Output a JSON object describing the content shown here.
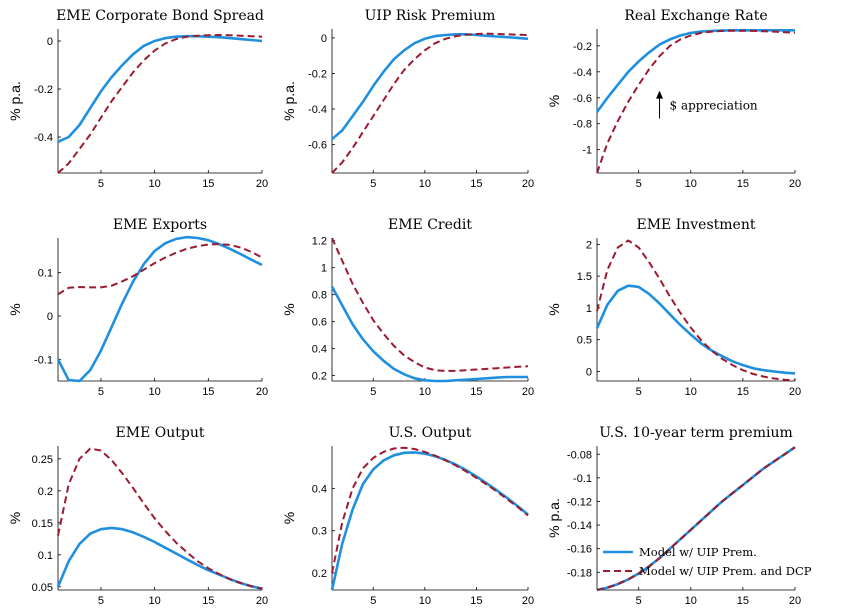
{
  "chart_data": [
    {
      "type": "line",
      "title": "EME Corporate Bond Spread",
      "ylabel": "% p.a.",
      "xlim": [
        1,
        20
      ],
      "ylim": [
        -0.55,
        0.05
      ],
      "xticks": [
        5,
        10,
        15,
        20
      ],
      "yticks": [
        -0.4,
        -0.2,
        0
      ],
      "ytick_labels": [
        "-0.4",
        "-0.2",
        "0"
      ],
      "x": [
        1,
        2,
        3,
        4,
        5,
        6,
        7,
        8,
        9,
        10,
        11,
        12,
        13,
        14,
        15,
        16,
        17,
        18,
        19,
        20
      ],
      "series": [
        {
          "name": "Model w/ UIP Prem.",
          "color": "#1f8fdf",
          "dash": "solid",
          "values": [
            -0.42,
            -0.4,
            -0.35,
            -0.28,
            -0.21,
            -0.15,
            -0.1,
            -0.055,
            -0.02,
            0.0,
            0.012,
            0.018,
            0.02,
            0.02,
            0.018,
            0.016,
            0.012,
            0.008,
            0.004,
            0.0
          ]
        },
        {
          "name": "Model w/ UIP Prem. and DCP",
          "color": "#9b1b30",
          "dash": "dashed",
          "values": [
            -0.55,
            -0.51,
            -0.45,
            -0.39,
            -0.32,
            -0.25,
            -0.19,
            -0.13,
            -0.08,
            -0.04,
            -0.01,
            0.008,
            0.018,
            0.022,
            0.024,
            0.025,
            0.024,
            0.022,
            0.02,
            0.018
          ]
        }
      ]
    },
    {
      "type": "line",
      "title": "UIP Risk Premium",
      "ylabel": "% p.a.",
      "xlim": [
        1,
        20
      ],
      "ylim": [
        -0.76,
        0.05
      ],
      "xticks": [
        5,
        10,
        15,
        20
      ],
      "yticks": [
        -0.6,
        -0.4,
        -0.2,
        0
      ],
      "ytick_labels": [
        "-0.6",
        "-0.4",
        "-0.2",
        "0"
      ],
      "x": [
        1,
        2,
        3,
        4,
        5,
        6,
        7,
        8,
        9,
        10,
        11,
        12,
        13,
        14,
        15,
        16,
        17,
        18,
        19,
        20
      ],
      "series": [
        {
          "name": "Model w/ UIP Prem.",
          "color": "#1f8fdf",
          "dash": "solid",
          "values": [
            -0.57,
            -0.52,
            -0.44,
            -0.36,
            -0.27,
            -0.19,
            -0.12,
            -0.07,
            -0.03,
            -0.005,
            0.01,
            0.016,
            0.02,
            0.02,
            0.016,
            0.012,
            0.008,
            0.004,
            0.0,
            -0.005
          ]
        },
        {
          "name": "Model w/ UIP Prem. and DCP",
          "color": "#9b1b30",
          "dash": "dashed",
          "values": [
            -0.76,
            -0.7,
            -0.62,
            -0.53,
            -0.44,
            -0.35,
            -0.26,
            -0.18,
            -0.12,
            -0.07,
            -0.03,
            -0.005,
            0.01,
            0.018,
            0.022,
            0.024,
            0.022,
            0.02,
            0.018,
            0.016
          ]
        }
      ]
    },
    {
      "type": "line",
      "title": "Real Exchange Rate",
      "ylabel": "%",
      "xlim": [
        1,
        20
      ],
      "ylim": [
        -1.18,
        -0.07
      ],
      "xticks": [
        5,
        10,
        15,
        20
      ],
      "yticks": [
        -1,
        -0.8,
        -0.6,
        -0.4,
        -0.2
      ],
      "ytick_labels": [
        "-1",
        "-0.8",
        "-0.6",
        "-0.4",
        "-0.2"
      ],
      "annotation": "$ appreciation",
      "x": [
        1,
        2,
        3,
        4,
        5,
        6,
        7,
        8,
        9,
        10,
        11,
        12,
        13,
        14,
        15,
        16,
        17,
        18,
        19,
        20
      ],
      "series": [
        {
          "name": "Model w/ UIP Prem.",
          "color": "#1f8fdf",
          "dash": "solid",
          "values": [
            -0.71,
            -0.6,
            -0.5,
            -0.4,
            -0.32,
            -0.25,
            -0.19,
            -0.15,
            -0.12,
            -0.1,
            -0.09,
            -0.085,
            -0.082,
            -0.08,
            -0.08,
            -0.08,
            -0.08,
            -0.08,
            -0.08,
            -0.08
          ]
        },
        {
          "name": "Model w/ UIP Prem. and DCP",
          "color": "#9b1b30",
          "dash": "dashed",
          "values": [
            -1.18,
            -0.95,
            -0.78,
            -0.63,
            -0.5,
            -0.38,
            -0.28,
            -0.2,
            -0.15,
            -0.12,
            -0.1,
            -0.09,
            -0.085,
            -0.083,
            -0.083,
            -0.085,
            -0.088,
            -0.09,
            -0.095,
            -0.1
          ]
        }
      ]
    },
    {
      "type": "line",
      "title": "EME Exports",
      "ylabel": "%",
      "xlim": [
        1,
        20
      ],
      "ylim": [
        -0.15,
        0.18
      ],
      "xticks": [
        5,
        10,
        15,
        20
      ],
      "yticks": [
        -0.1,
        0,
        0.1
      ],
      "ytick_labels": [
        "-0.1",
        "0",
        "0.1"
      ],
      "x": [
        1,
        2,
        3,
        4,
        5,
        6,
        7,
        8,
        9,
        10,
        11,
        12,
        13,
        14,
        15,
        16,
        17,
        18,
        19,
        20
      ],
      "series": [
        {
          "name": "Model w/ UIP Prem.",
          "color": "#1f8fdf",
          "dash": "solid",
          "values": [
            -0.1,
            -0.148,
            -0.15,
            -0.125,
            -0.08,
            -0.025,
            0.03,
            0.08,
            0.12,
            0.15,
            0.168,
            0.178,
            0.182,
            0.18,
            0.175,
            0.166,
            0.155,
            0.143,
            0.13,
            0.118
          ]
        },
        {
          "name": "Model w/ UIP Prem. and DCP",
          "color": "#9b1b30",
          "dash": "dashed",
          "values": [
            0.05,
            0.065,
            0.067,
            0.066,
            0.066,
            0.07,
            0.08,
            0.092,
            0.107,
            0.122,
            0.135,
            0.146,
            0.155,
            0.161,
            0.165,
            0.166,
            0.164,
            0.158,
            0.148,
            0.135
          ]
        }
      ]
    },
    {
      "type": "line",
      "title": "EME Credit",
      "ylabel": "%",
      "xlim": [
        1,
        20
      ],
      "ylim": [
        0.16,
        1.22
      ],
      "xticks": [
        5,
        10,
        15,
        20
      ],
      "yticks": [
        0.2,
        0.4,
        0.6,
        0.8,
        1,
        1.2
      ],
      "ytick_labels": [
        "0.2",
        "0.4",
        "0.6",
        "0.8",
        "1",
        "1.2"
      ],
      "x": [
        1,
        2,
        3,
        4,
        5,
        6,
        7,
        8,
        9,
        10,
        11,
        12,
        13,
        14,
        15,
        16,
        17,
        18,
        19,
        20
      ],
      "series": [
        {
          "name": "Model w/ UIP Prem.",
          "color": "#1f8fdf",
          "dash": "solid",
          "values": [
            0.86,
            0.72,
            0.58,
            0.47,
            0.38,
            0.31,
            0.25,
            0.21,
            0.18,
            0.165,
            0.16,
            0.16,
            0.165,
            0.17,
            0.175,
            0.18,
            0.185,
            0.19,
            0.19,
            0.19
          ]
        },
        {
          "name": "Model w/ UIP Prem. and DCP",
          "color": "#9b1b30",
          "dash": "dashed",
          "values": [
            1.22,
            1.05,
            0.88,
            0.74,
            0.61,
            0.51,
            0.42,
            0.35,
            0.3,
            0.26,
            0.24,
            0.235,
            0.235,
            0.24,
            0.245,
            0.25,
            0.255,
            0.26,
            0.265,
            0.27
          ]
        }
      ]
    },
    {
      "type": "line",
      "title": "EME Investment",
      "ylabel": "%",
      "xlim": [
        1,
        20
      ],
      "ylim": [
        -0.15,
        2.1
      ],
      "xticks": [
        5,
        10,
        15,
        20
      ],
      "yticks": [
        0,
        0.5,
        1,
        1.5,
        2
      ],
      "ytick_labels": [
        "0",
        "0.5",
        "1",
        "1.5",
        "2"
      ],
      "x": [
        1,
        2,
        3,
        4,
        5,
        6,
        7,
        8,
        9,
        10,
        11,
        12,
        13,
        14,
        15,
        16,
        17,
        18,
        19,
        20
      ],
      "series": [
        {
          "name": "Model w/ UIP Prem.",
          "color": "#1f8fdf",
          "dash": "solid",
          "values": [
            0.68,
            1.05,
            1.27,
            1.35,
            1.33,
            1.22,
            1.07,
            0.9,
            0.73,
            0.58,
            0.44,
            0.33,
            0.24,
            0.16,
            0.1,
            0.05,
            0.02,
            0.0,
            -0.02,
            -0.03
          ]
        },
        {
          "name": "Model w/ UIP Prem. and DCP",
          "color": "#9b1b30",
          "dash": "dashed",
          "values": [
            0.95,
            1.6,
            1.95,
            2.06,
            1.95,
            1.72,
            1.46,
            1.18,
            0.92,
            0.69,
            0.49,
            0.33,
            0.2,
            0.1,
            0.02,
            -0.04,
            -0.08,
            -0.11,
            -0.13,
            -0.14
          ]
        }
      ]
    },
    {
      "type": "line",
      "title": "EME Output",
      "ylabel": "%",
      "xlim": [
        1,
        20
      ],
      "ylim": [
        0.045,
        0.27
      ],
      "xticks": [
        5,
        10,
        15,
        20
      ],
      "yticks": [
        0.05,
        0.1,
        0.15,
        0.2,
        0.25
      ],
      "ytick_labels": [
        "0.05",
        "0.1",
        "0.15",
        "0.2",
        "0.25"
      ],
      "x": [
        1,
        2,
        3,
        4,
        5,
        6,
        7,
        8,
        9,
        10,
        11,
        12,
        13,
        14,
        15,
        16,
        17,
        18,
        19,
        20
      ],
      "series": [
        {
          "name": "Model w/ UIP Prem.",
          "color": "#1f8fdf",
          "dash": "solid",
          "values": [
            0.05,
            0.09,
            0.117,
            0.133,
            0.14,
            0.142,
            0.14,
            0.135,
            0.128,
            0.12,
            0.111,
            0.102,
            0.093,
            0.084,
            0.076,
            0.069,
            0.062,
            0.056,
            0.051,
            0.047
          ]
        },
        {
          "name": "Model w/ UIP Prem. and DCP",
          "color": "#9b1b30",
          "dash": "dashed",
          "values": [
            0.13,
            0.21,
            0.25,
            0.266,
            0.263,
            0.248,
            0.227,
            0.204,
            0.18,
            0.157,
            0.137,
            0.119,
            0.104,
            0.09,
            0.079,
            0.07,
            0.062,
            0.056,
            0.051,
            0.047
          ]
        }
      ]
    },
    {
      "type": "line",
      "title": "U.S. Output",
      "ylabel": "%",
      "xlim": [
        1,
        20
      ],
      "ylim": [
        0.16,
        0.5
      ],
      "xticks": [
        5,
        10,
        15,
        20
      ],
      "yticks": [
        0.2,
        0.3,
        0.4
      ],
      "ytick_labels": [
        "0.2",
        "0.3",
        "0.4"
      ],
      "x": [
        1,
        2,
        3,
        4,
        5,
        6,
        7,
        8,
        9,
        10,
        11,
        12,
        13,
        14,
        15,
        16,
        17,
        18,
        19,
        20
      ],
      "series": [
        {
          "name": "Model w/ UIP Prem.",
          "color": "#1f8fdf",
          "dash": "solid",
          "values": [
            0.16,
            0.27,
            0.35,
            0.41,
            0.445,
            0.466,
            0.478,
            0.484,
            0.485,
            0.482,
            0.476,
            0.467,
            0.456,
            0.443,
            0.428,
            0.412,
            0.395,
            0.377,
            0.358,
            0.338
          ]
        },
        {
          "name": "Model w/ UIP Prem. and DCP",
          "color": "#9b1b30",
          "dash": "dashed",
          "values": [
            0.2,
            0.32,
            0.4,
            0.447,
            0.472,
            0.486,
            0.494,
            0.496,
            0.493,
            0.486,
            0.477,
            0.466,
            0.454,
            0.44,
            0.425,
            0.409,
            0.392,
            0.374,
            0.356,
            0.336
          ]
        }
      ]
    },
    {
      "type": "line",
      "title": "U.S. 10-year term premium",
      "ylabel": "% p.a.",
      "xlim": [
        1,
        20
      ],
      "ylim": [
        -0.195,
        -0.073
      ],
      "xticks": [
        5,
        10,
        15,
        20
      ],
      "yticks": [
        -0.18,
        -0.16,
        -0.14,
        -0.12,
        -0.1,
        -0.08
      ],
      "ytick_labels": [
        "-0.18",
        "-0.16",
        "-0.14",
        "-0.12",
        "-0.1",
        "-0.08"
      ],
      "legend_position": "bottom-left",
      "x": [
        1,
        2,
        3,
        4,
        5,
        6,
        7,
        8,
        9,
        10,
        11,
        12,
        13,
        14,
        15,
        16,
        17,
        18,
        19,
        20
      ],
      "series": [
        {
          "name": "Model w/ UIP Prem.",
          "color": "#1f8fdf",
          "dash": "solid",
          "values": [
            -0.195,
            -0.193,
            -0.19,
            -0.186,
            -0.181,
            -0.175,
            -0.168,
            -0.16,
            -0.152,
            -0.144,
            -0.136,
            -0.128,
            -0.12,
            -0.113,
            -0.106,
            -0.099,
            -0.092,
            -0.086,
            -0.08,
            -0.074
          ]
        },
        {
          "name": "Model w/ UIP Prem. and DCP",
          "color": "#9b1b30",
          "dash": "dashed",
          "values": [
            -0.195,
            -0.193,
            -0.19,
            -0.186,
            -0.181,
            -0.175,
            -0.168,
            -0.16,
            -0.152,
            -0.144,
            -0.136,
            -0.128,
            -0.12,
            -0.113,
            -0.106,
            -0.099,
            -0.092,
            -0.086,
            -0.08,
            -0.074
          ]
        }
      ]
    }
  ]
}
